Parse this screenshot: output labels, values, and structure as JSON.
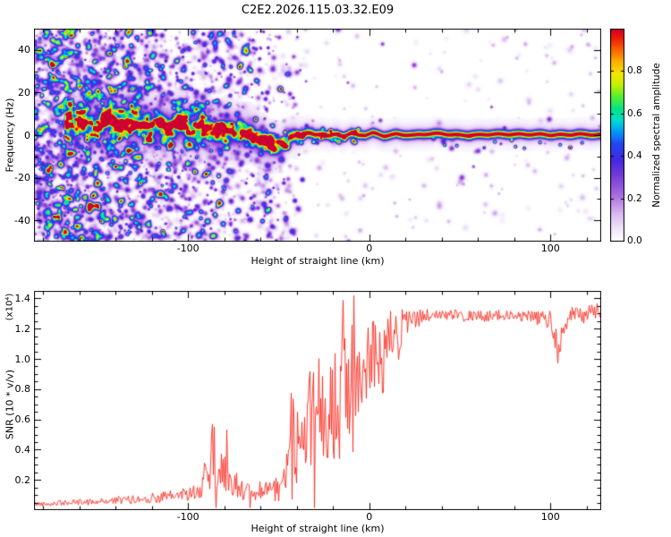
{
  "title": "C2E2.2026.115.03.32.E09",
  "colors": {
    "background": "#ffffff",
    "axis": "#000000",
    "snr_line": "#fb2b20"
  },
  "chart_data": [
    {
      "id": "spectrogram",
      "type": "heatmap",
      "xlabel": "Height of straight line (km)",
      "ylabel": "Frequency (Hz)",
      "xlim": [
        -185,
        128
      ],
      "ylim": [
        -50,
        50
      ],
      "xticks": [
        -100,
        0,
        100
      ],
      "xtick_labels": [
        "-100",
        "0",
        "100"
      ],
      "xminor": 20,
      "yticks": [
        -40,
        -20,
        0,
        20,
        40
      ],
      "ytick_labels": [
        "-40",
        "-20",
        "0",
        "20",
        "40"
      ],
      "yminor": 10,
      "colorbar": {
        "label": "Normalized spectral amplitude",
        "ticks": [
          0.0,
          0.2,
          0.4,
          0.6,
          0.8
        ],
        "tick_labels": [
          "0.0",
          "0.2",
          "0.4",
          "0.6",
          "0.8"
        ],
        "range": [
          0,
          1
        ]
      },
      "colormap": [
        [
          0.0,
          "#ffffff"
        ],
        [
          0.05,
          "#f3eafb"
        ],
        [
          0.13,
          "#d9b8f0"
        ],
        [
          0.22,
          "#a86ae0"
        ],
        [
          0.3,
          "#7a3fd8"
        ],
        [
          0.38,
          "#4428e0"
        ],
        [
          0.46,
          "#2048f0"
        ],
        [
          0.52,
          "#00a0f8"
        ],
        [
          0.57,
          "#00ddd0"
        ],
        [
          0.62,
          "#00e388"
        ],
        [
          0.68,
          "#55ee33"
        ],
        [
          0.74,
          "#c8f000"
        ],
        [
          0.79,
          "#f5e400"
        ],
        [
          0.85,
          "#fbaa00"
        ],
        [
          0.91,
          "#f75a00"
        ],
        [
          0.96,
          "#ee1806"
        ],
        [
          1.0,
          "#cc0033"
        ]
      ],
      "ridge": {
        "x": [
          -168,
          -160,
          -152,
          -145,
          -138,
          -131,
          -124,
          -117,
          -110,
          -104,
          -98,
          -92,
          -86,
          -80,
          -74,
          -68,
          -63,
          -58,
          -54,
          -50,
          -46,
          -42,
          -38,
          -34,
          -30,
          -26,
          -22,
          -18,
          -14,
          -10,
          -6,
          -2,
          2,
          8,
          15,
          25,
          40,
          60,
          80,
          100,
          115,
          128
        ],
        "freq": [
          5,
          7,
          4,
          8,
          5,
          7,
          4,
          6,
          3,
          5,
          2,
          4,
          2,
          3,
          1,
          0,
          -1,
          -3,
          -5,
          -4,
          -2,
          -1,
          0,
          1,
          0,
          1,
          0,
          1,
          0,
          1,
          0,
          0,
          1,
          0,
          1,
          0,
          1,
          0,
          1,
          0,
          1,
          0
        ],
        "amp": [
          0.5,
          0.55,
          0.55,
          0.6,
          0.6,
          0.65,
          0.6,
          0.65,
          0.65,
          0.7,
          0.65,
          0.7,
          0.7,
          0.7,
          0.72,
          0.72,
          0.75,
          0.78,
          0.8,
          0.82,
          0.85,
          0.9,
          0.95,
          0.95,
          0.96,
          0.96,
          0.97,
          0.97,
          0.97,
          0.97,
          0.97,
          0.97,
          0.97,
          0.97,
          0.97,
          0.97,
          0.97,
          0.97,
          0.97,
          0.97,
          0.97,
          0.97
        ],
        "sigma": [
          4,
          4.2,
          4,
          4.5,
          4.2,
          4.4,
          4,
          4.2,
          4,
          4,
          3.8,
          3.8,
          3.6,
          3.6,
          3.4,
          3.2,
          3,
          3,
          2.6,
          2.4,
          2,
          1.8,
          1.5,
          1.4,
          1.3,
          1.3,
          1.2,
          1.2,
          1.2,
          1.2,
          1.2,
          1.2,
          1.2,
          1.2,
          1.2,
          1.2,
          1.2,
          1.2,
          1.2,
          1.2,
          1.2,
          1.2
        ]
      },
      "noise_field": {
        "x_range": [
          -185,
          -35
        ],
        "amp_range": [
          0.06,
          0.65
        ],
        "fade_toward_right": true
      }
    },
    {
      "id": "snr",
      "type": "line",
      "xlabel": "Height of straight line (km)",
      "ylabel": "SNR (10 * v/v)",
      "y_scale_label": "(x10⁴)",
      "xlim": [
        -185,
        128
      ],
      "ylim": [
        0,
        1.45
      ],
      "xticks": [
        -100,
        0,
        100
      ],
      "xtick_labels": [
        "-100",
        "0",
        "100"
      ],
      "xminor": 20,
      "yticks": [
        0.2,
        0.4,
        0.6,
        0.8,
        1.0,
        1.2,
        1.4
      ],
      "ytick_labels": [
        "0.2",
        "0.4",
        "0.6",
        "0.8",
        "1.0",
        "1.2",
        "1.4"
      ],
      "series": [
        {
          "name": "SNR",
          "color": "#fb2b20",
          "envelope": {
            "x": [
              -185,
              -165,
              -145,
              -130,
              -120,
              -110,
              -100,
              -93,
              -87,
              -82,
              -78,
              -73,
              -68,
              -62,
              -57,
              -52,
              -47,
              -43,
              -38,
              -33,
              -28,
              -24,
              -20,
              -16,
              -12,
              -8,
              -4,
              0,
              5,
              10,
              15,
              20,
              25,
              30,
              40,
              60,
              80,
              95,
              101,
              104,
              107,
              112,
              118,
              124,
              128
            ],
            "base": [
              0.04,
              0.05,
              0.06,
              0.07,
              0.08,
              0.09,
              0.11,
              0.13,
              0.22,
              0.28,
              0.24,
              0.17,
              0.12,
              0.1,
              0.11,
              0.13,
              0.17,
              0.28,
              0.45,
              0.55,
              0.62,
              0.55,
              0.7,
              0.75,
              0.85,
              0.9,
              0.95,
              1.0,
              1.05,
              1.1,
              1.15,
              1.22,
              1.26,
              1.28,
              1.29,
              1.28,
              1.29,
              1.27,
              1.25,
              1.05,
              1.22,
              1.3,
              1.28,
              1.32,
              1.3
            ],
            "noise": [
              0.015,
              0.02,
              0.025,
              0.03,
              0.035,
              0.04,
              0.05,
              0.06,
              0.12,
              0.15,
              0.12,
              0.09,
              0.06,
              0.05,
              0.06,
              0.08,
              0.12,
              0.25,
              0.35,
              0.4,
              0.42,
              0.4,
              0.4,
              0.42,
              0.38,
              0.33,
              0.3,
              0.28,
              0.25,
              0.22,
              0.18,
              0.12,
              0.07,
              0.05,
              0.04,
              0.04,
              0.04,
              0.05,
              0.08,
              0.1,
              0.08,
              0.05,
              0.05,
              0.06,
              0.05
            ],
            "spike_prob": [
              0,
              0,
              0.02,
              0.04,
              0.06,
              0.08,
              0.1,
              0.15,
              0.3,
              0.3,
              0.25,
              0.2,
              0.12,
              0.1,
              0.12,
              0.18,
              0.25,
              0.35,
              0.4,
              0.45,
              0.45,
              0.45,
              0.45,
              0.45,
              0.4,
              0.35,
              0.3,
              0.3,
              0.25,
              0.2,
              0.15,
              0.1,
              0.05,
              0.03,
              0.02,
              0.02,
              0.02,
              0.03,
              0.05,
              0.05,
              0.04,
              0.02,
              0.03,
              0.04,
              0.03
            ],
            "spike_amp": [
              0.01,
              0.02,
              0.03,
              0.05,
              0.06,
              0.08,
              0.1,
              0.15,
              0.3,
              0.32,
              0.28,
              0.2,
              0.12,
              0.1,
              0.12,
              0.2,
              0.3,
              0.5,
              0.55,
              0.6,
              0.6,
              0.6,
              0.55,
              0.5,
              0.45,
              0.4,
              0.35,
              0.3,
              0.28,
              0.25,
              0.2,
              0.15,
              0.1,
              0.06,
              0.05,
              0.05,
              0.05,
              0.06,
              0.1,
              0.12,
              0.1,
              0.06,
              0.06,
              0.08,
              0.06
            ]
          }
        }
      ]
    }
  ]
}
